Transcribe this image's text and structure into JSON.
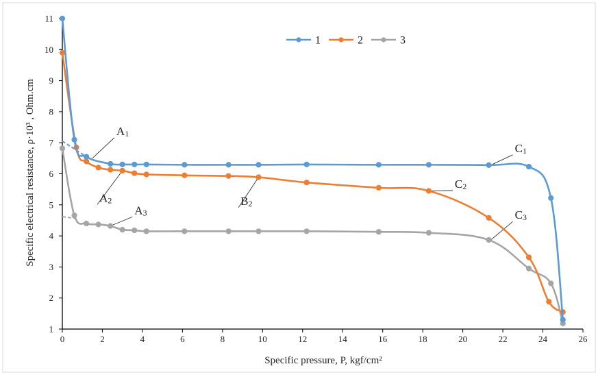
{
  "chart_data": {
    "type": "line",
    "title": "",
    "xlabel": "Specific pressure, P, kgf/cm²",
    "ylabel": "Specific electrical resistance, ρ·10³ , Ohm.cm",
    "xlim": [
      0,
      26
    ],
    "ylim": [
      1,
      11
    ],
    "xticks": [
      0,
      2,
      4,
      6,
      8,
      10,
      12,
      14,
      16,
      18,
      20,
      22,
      24,
      26
    ],
    "yticks": [
      1,
      2,
      3,
      4,
      5,
      6,
      7,
      8,
      9,
      10,
      11
    ],
    "grid": false,
    "legend_position": "top-center",
    "series": [
      {
        "name": "1",
        "color": "#5b9bd5",
        "x": [
          0,
          0.6,
          1.2,
          2.4,
          3.0,
          3.6,
          4.2,
          6.1,
          8.3,
          9.8,
          12.2,
          15.8,
          18.3,
          21.3,
          23.3,
          24.4,
          25.0
        ],
        "y": [
          11.0,
          7.1,
          6.55,
          6.32,
          6.3,
          6.3,
          6.3,
          6.29,
          6.29,
          6.29,
          6.3,
          6.29,
          6.29,
          6.28,
          6.23,
          5.22,
          1.3
        ]
      },
      {
        "name": "2",
        "color": "#ed7d31",
        "x": [
          0,
          0.7,
          1.2,
          1.8,
          2.4,
          3.0,
          3.6,
          4.2,
          6.1,
          8.3,
          9.8,
          12.2,
          15.8,
          18.3,
          21.3,
          23.3,
          24.3,
          25.0
        ],
        "y": [
          9.9,
          6.85,
          6.4,
          6.2,
          6.13,
          6.1,
          6.02,
          5.98,
          5.95,
          5.93,
          5.89,
          5.72,
          5.55,
          5.45,
          4.58,
          3.31,
          1.88,
          1.55
        ]
      },
      {
        "name": "3",
        "color": "#a5a5a5",
        "x": [
          0,
          0.6,
          1.2,
          1.8,
          2.4,
          3.0,
          3.6,
          4.2,
          6.1,
          8.3,
          9.8,
          12.2,
          15.8,
          18.3,
          21.3,
          23.3,
          24.4,
          25.0
        ],
        "y": [
          6.82,
          4.66,
          4.4,
          4.37,
          4.32,
          4.2,
          4.18,
          4.15,
          4.15,
          4.15,
          4.15,
          4.15,
          4.13,
          4.1,
          3.87,
          2.95,
          2.47,
          1.18
        ]
      }
    ],
    "annotations": [
      {
        "label": "A",
        "sub": "1",
        "text_x": 2.7,
        "text_y": 7.25,
        "arrow_to": [
          1.5,
          6.5
        ],
        "dashed_from": [
          0,
          7.05
        ],
        "dashed_to": [
          1.2,
          6.55
        ],
        "dashed_color": "#5b9bd5"
      },
      {
        "label": "A",
        "sub": "2",
        "text_x": 1.85,
        "text_y": 5.1,
        "arrow_to": [
          3.0,
          6.1
        ]
      },
      {
        "label": "A",
        "sub": "3",
        "text_x": 3.6,
        "text_y": 4.7,
        "arrow_to": [
          2.4,
          4.32
        ],
        "dashed_from": [
          0,
          4.62
        ],
        "dashed_to": [
          0.8,
          4.55
        ],
        "dashed_color": "#a5a5a5"
      },
      {
        "label": "B",
        "sub": "2",
        "text_x": 8.9,
        "text_y": 5.0,
        "arrow_to": [
          9.8,
          5.89
        ]
      },
      {
        "label": "C",
        "sub": "1",
        "text_x": 22.6,
        "text_y": 6.7,
        "arrow_to": [
          21.4,
          6.28
        ]
      },
      {
        "label": "C",
        "sub": "2",
        "text_x": 19.6,
        "text_y": 5.55,
        "arrow_to": [
          18.4,
          5.45
        ]
      },
      {
        "label": "C",
        "sub": "3",
        "text_x": 22.6,
        "text_y": 4.55,
        "arrow_to": [
          21.4,
          3.87
        ]
      }
    ]
  }
}
